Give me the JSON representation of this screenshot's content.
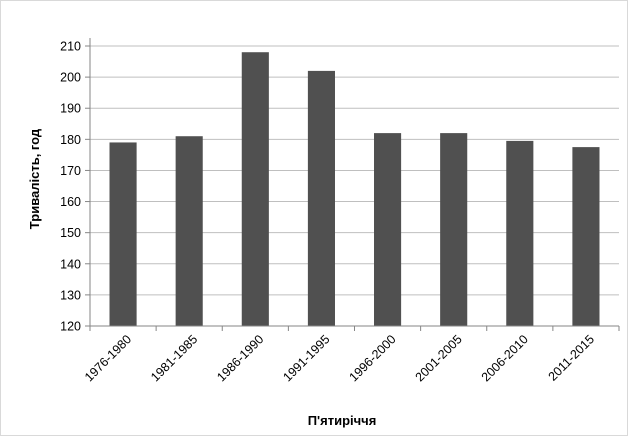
{
  "chart_data": {
    "type": "bar",
    "categories": [
      "1976-1980",
      "1981-1985",
      "1986-1990",
      "1991-1995",
      "1996-2000",
      "2001-2005",
      "2006-2010",
      "2011-2015"
    ],
    "series": [
      {
        "values": [
          179,
          181,
          208,
          202,
          182,
          182,
          179.5,
          177.5
        ]
      }
    ],
    "title": "",
    "xlabel": "П'ятиріччя",
    "ylabel": "Тривалість, год",
    "ylim": [
      120,
      210
    ],
    "yticks": [
      120,
      130,
      140,
      150,
      160,
      170,
      180,
      190,
      200,
      210
    ],
    "grid": true,
    "legend": "none",
    "bar_color": "#505050",
    "grid_color": "#bfbfbf"
  }
}
